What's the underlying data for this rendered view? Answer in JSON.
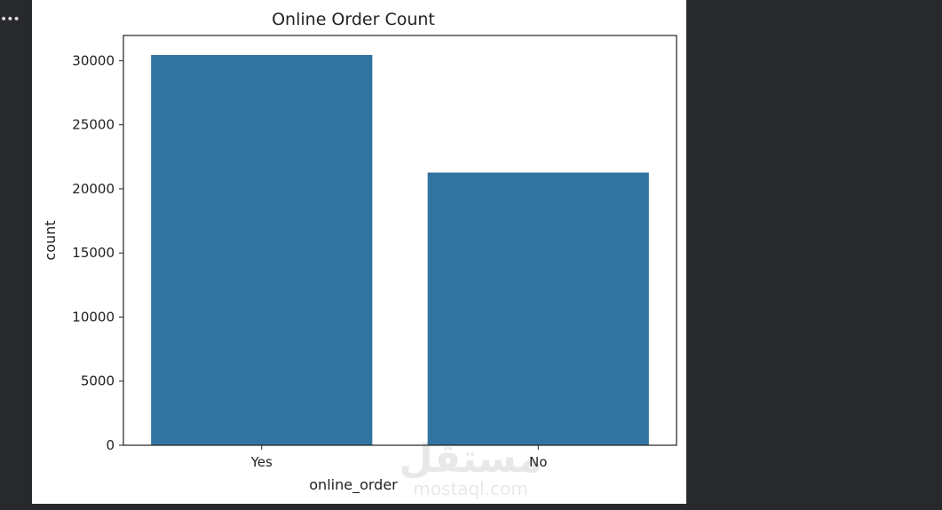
{
  "toolbar": {
    "more_icon": "ellipsis-icon",
    "more_label": "•••"
  },
  "watermark": {
    "text_arabic": "مستقل",
    "text_latin": "mostaql.com"
  },
  "chart_data": {
    "type": "bar",
    "title": "Online Order Count",
    "xlabel": "online_order",
    "ylabel": "count",
    "categories": [
      "Yes",
      "No"
    ],
    "values": [
      30444,
      21273
    ],
    "ylim": [
      0,
      31966
    ],
    "yticks": [
      0,
      5000,
      10000,
      15000,
      20000,
      25000,
      30000
    ],
    "grid": false,
    "bar_color": "#3274a1"
  }
}
